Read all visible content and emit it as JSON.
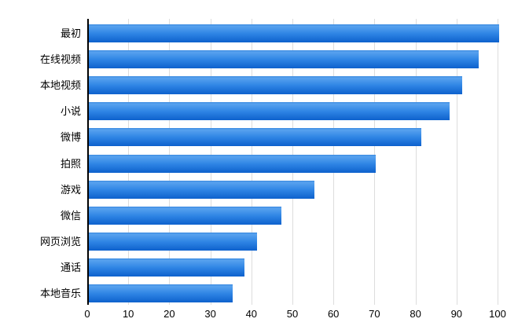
{
  "chart_data": {
    "type": "bar",
    "orientation": "horizontal",
    "title": "",
    "xlabel": "",
    "ylabel": "",
    "categories": [
      "最初",
      "在线视频",
      "本地视频",
      "小说",
      "微博",
      "拍照",
      "游戏",
      "微信",
      "网页浏览",
      "通话",
      "本地音乐"
    ],
    "values": [
      100,
      95,
      91,
      88,
      81,
      70,
      55,
      47,
      41,
      38,
      35
    ],
    "xlim": [
      0,
      100
    ],
    "x_ticks": [
      0,
      10,
      20,
      30,
      40,
      50,
      60,
      70,
      80,
      90,
      100
    ],
    "grid": true,
    "legend": false,
    "colors": {
      "bar_gradient_top": "#58a2ef",
      "bar_gradient_mid": "#2e84e4",
      "bar_gradient_bottom": "#0d61cd",
      "gridline": "#dddddd",
      "axis": "#000000",
      "text": "#000000",
      "background": "#ffffff"
    }
  }
}
